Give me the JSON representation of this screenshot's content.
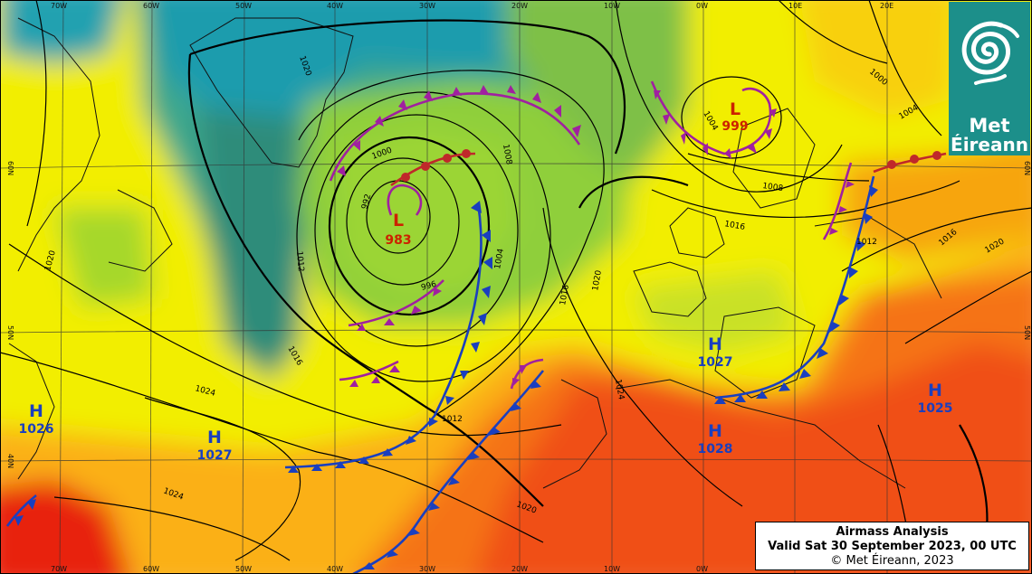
{
  "chart_title": "Airmass Analysis",
  "valid_time": "Valid Sat 30 September 2023, 00 UTC",
  "copyright": "© Met Éireann, 2023",
  "logo": {
    "line1": "Met",
    "line2": "Éireann"
  },
  "longitude_labels": [
    "70W",
    "60W",
    "50W",
    "40W",
    "30W",
    "20W",
    "10W",
    "0W",
    "10E",
    "20E"
  ],
  "latitude_labels": [
    "60N",
    "50N",
    "40N"
  ],
  "pressure_systems": [
    {
      "type": "L",
      "value": "983",
      "color": "#cc2200"
    },
    {
      "type": "L",
      "value": "999",
      "color": "#cc2200"
    },
    {
      "type": "H",
      "value": "1027",
      "color": "#1a3fbf"
    },
    {
      "type": "H",
      "value": "1027",
      "color": "#1a3fbf"
    },
    {
      "type": "H",
      "value": "1026",
      "color": "#1a3fbf"
    },
    {
      "type": "H",
      "value": "1028",
      "color": "#1a3fbf"
    },
    {
      "type": "H",
      "value": "1025",
      "color": "#1a3fbf"
    }
  ],
  "isobar_labels": [
    "1020",
    "1016",
    "1012",
    "1008",
    "1004",
    "1000",
    "996",
    "992",
    "1024",
    "1016",
    "1012",
    "1016",
    "1020",
    "1024",
    "1012",
    "1008",
    "1004",
    "1000",
    "1020",
    "1024",
    "1020",
    "1016",
    "1020",
    "1004"
  ],
  "colors": {
    "front_cold": "#1a3fbf",
    "front_occluded": "#a020a0",
    "front_warm": "#c0282a",
    "isobar": "#000000",
    "brand": "#1c8f8a"
  }
}
